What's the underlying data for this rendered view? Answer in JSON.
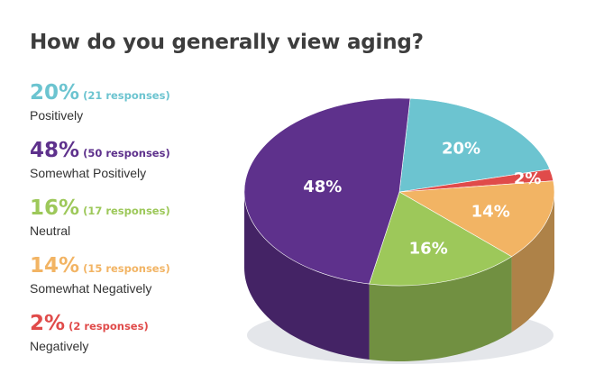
{
  "chart_data": {
    "type": "pie",
    "title": "How do you generally view aging?",
    "slices": [
      {
        "category": "Positively",
        "percent_label": "20%",
        "responses_label": "(21 responses)",
        "responses": 21,
        "value": 20,
        "color": "#6cc4d0"
      },
      {
        "category": "Negatively",
        "percent_label": "2%",
        "responses_label": "(2 responses)",
        "responses": 2,
        "value": 2,
        "color": "#e04b4a"
      },
      {
        "category": "Somewhat Negatively",
        "percent_label": "14%",
        "responses_label": "(15 responses)",
        "responses": 15,
        "value": 14,
        "color": "#f2b464"
      },
      {
        "category": "Neutral",
        "percent_label": "16%",
        "responses_label": "(17 responses)",
        "responses": 17,
        "value": 16,
        "color": "#9dc85a"
      },
      {
        "category": "Somewhat Positively",
        "percent_label": "48%",
        "responses_label": "(50 responses)",
        "responses": 50,
        "value": 48,
        "color": "#5e318c"
      }
    ],
    "legend_order": [
      "Positively",
      "Somewhat Positively",
      "Neutral",
      "Somewhat Negatively",
      "Negatively"
    ],
    "legend_placement": "left",
    "style": "3d"
  }
}
